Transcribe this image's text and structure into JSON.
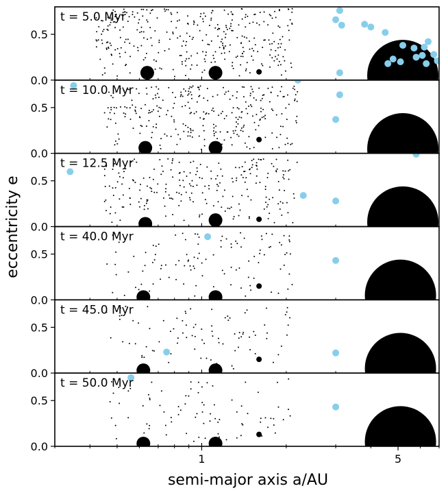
{
  "chart_data": {
    "type": "scatter",
    "xlabel": "semi-major axis a/AU",
    "ylabel": "eccentricity e",
    "x_scale": "log",
    "xlim": [
      0.3,
      7.0
    ],
    "ylim": [
      0.0,
      0.8
    ],
    "x_ticks": [
      {
        "value": 1,
        "label": "1"
      },
      {
        "value": 5,
        "label": "5"
      }
    ],
    "y_ticks": [
      {
        "value": 0.0,
        "label": "0.0"
      },
      {
        "value": 0.5,
        "label": "0.5"
      }
    ],
    "colors": {
      "planetesimal": "#000000",
      "embryo": "#87ceeb",
      "planet": "#000000"
    },
    "panels": [
      {
        "label": "t = 5.0 Myr",
        "planets": [
          {
            "a": 0.64,
            "e": 0.08,
            "size": "medium"
          },
          {
            "a": 1.12,
            "e": 0.08,
            "size": "medium"
          },
          {
            "a": 1.6,
            "e": 0.09,
            "size": "small"
          },
          {
            "a": 5.2,
            "e": 0.05,
            "size": "giant"
          }
        ],
        "embryos": [
          {
            "a": 3.1,
            "e": 0.76
          },
          {
            "a": 3.0,
            "e": 0.66
          },
          {
            "a": 3.15,
            "e": 0.6
          },
          {
            "a": 3.8,
            "e": 0.61
          },
          {
            "a": 4.0,
            "e": 0.58
          },
          {
            "a": 4.5,
            "e": 0.52
          },
          {
            "a": 5.2,
            "e": 0.38
          },
          {
            "a": 5.7,
            "e": 0.35
          },
          {
            "a": 6.4,
            "e": 0.42
          },
          {
            "a": 6.2,
            "e": 0.36
          },
          {
            "a": 6.7,
            "e": 0.28
          },
          {
            "a": 6.9,
            "e": 0.21
          },
          {
            "a": 6.1,
            "e": 0.27
          },
          {
            "a": 4.6,
            "e": 0.18
          },
          {
            "a": 4.8,
            "e": 0.23
          },
          {
            "a": 5.1,
            "e": 0.2
          },
          {
            "a": 5.8,
            "e": 0.25
          },
          {
            "a": 6.3,
            "e": 0.18
          },
          {
            "a": 3.1,
            "e": 0.08
          }
        ],
        "planetesimals": {
          "count": 340,
          "a_min": 0.42,
          "a_max": 2.1,
          "e_max": 0.78
        }
      },
      {
        "label": "t = 10.0 Myr",
        "planets": [
          {
            "a": 0.63,
            "e": 0.06,
            "size": "medium"
          },
          {
            "a": 1.12,
            "e": 0.06,
            "size": "medium"
          },
          {
            "a": 1.6,
            "e": 0.15,
            "size": "small"
          },
          {
            "a": 5.2,
            "e": 0.05,
            "size": "giant"
          }
        ],
        "embryos": [
          {
            "a": 0.35,
            "e": 0.74
          },
          {
            "a": 2.2,
            "e": 0.8
          },
          {
            "a": 3.1,
            "e": 0.64
          },
          {
            "a": 3.0,
            "e": 0.37
          }
        ],
        "planetesimals": {
          "count": 300,
          "a_min": 0.45,
          "a_max": 2.2,
          "e_max": 0.74
        }
      },
      {
        "label": "t = 12.5 Myr",
        "planets": [
          {
            "a": 0.63,
            "e": 0.03,
            "size": "medium"
          },
          {
            "a": 1.12,
            "e": 0.07,
            "size": "medium"
          },
          {
            "a": 1.6,
            "e": 0.08,
            "size": "small"
          },
          {
            "a": 5.2,
            "e": 0.05,
            "size": "giant"
          }
        ],
        "embryos": [
          {
            "a": 0.34,
            "e": 0.6
          },
          {
            "a": 2.3,
            "e": 0.34
          },
          {
            "a": 3.0,
            "e": 0.28
          },
          {
            "a": 5.8,
            "e": 0.79
          }
        ],
        "planetesimals": {
          "count": 240,
          "a_min": 0.45,
          "a_max": 2.2,
          "e_max": 0.74
        }
      },
      {
        "label": "t = 40.0 Myr",
        "planets": [
          {
            "a": 0.62,
            "e": 0.03,
            "size": "medium"
          },
          {
            "a": 1.12,
            "e": 0.03,
            "size": "medium"
          },
          {
            "a": 1.6,
            "e": 0.15,
            "size": "small"
          },
          {
            "a": 5.1,
            "e": 0.05,
            "size": "giant"
          }
        ],
        "embryos": [
          {
            "a": 1.05,
            "e": 0.69
          },
          {
            "a": 3.0,
            "e": 0.43
          }
        ],
        "planetesimals": {
          "count": 110,
          "a_min": 0.45,
          "a_max": 2.1,
          "e_max": 0.74
        }
      },
      {
        "label": "t = 45.0 Myr",
        "planets": [
          {
            "a": 0.62,
            "e": 0.03,
            "size": "medium"
          },
          {
            "a": 1.12,
            "e": 0.03,
            "size": "medium"
          },
          {
            "a": 1.6,
            "e": 0.15,
            "size": "small"
          },
          {
            "a": 5.1,
            "e": 0.05,
            "size": "giant"
          }
        ],
        "embryos": [
          {
            "a": 0.75,
            "e": 0.23
          },
          {
            "a": 3.0,
            "e": 0.22
          }
        ],
        "planetesimals": {
          "count": 90,
          "a_min": 0.45,
          "a_max": 2.1,
          "e_max": 0.74
        }
      },
      {
        "label": "t = 50.0 Myr",
        "planets": [
          {
            "a": 0.62,
            "e": 0.03,
            "size": "medium"
          },
          {
            "a": 1.12,
            "e": 0.03,
            "size": "medium"
          },
          {
            "a": 1.6,
            "e": 0.13,
            "size": "small"
          },
          {
            "a": 5.1,
            "e": 0.05,
            "size": "giant"
          }
        ],
        "embryos": [
          {
            "a": 0.56,
            "e": 0.75
          },
          {
            "a": 3.0,
            "e": 0.43
          }
        ],
        "planetesimals": {
          "count": 85,
          "a_min": 0.45,
          "a_max": 2.1,
          "e_max": 0.74
        }
      }
    ]
  }
}
